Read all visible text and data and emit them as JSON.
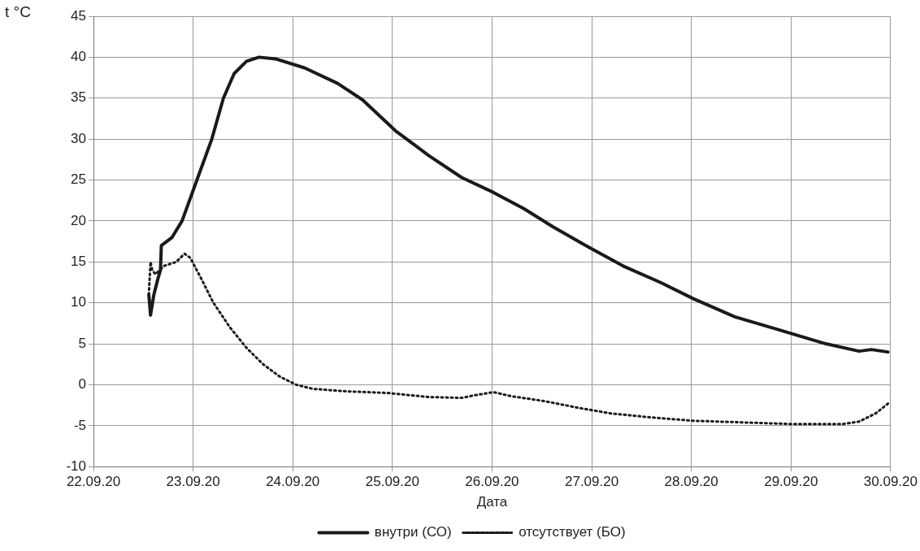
{
  "chart_data": {
    "type": "line",
    "xlabel": "Дата",
    "ylabel": "t °C",
    "xlim": [
      "--09-22",
      "--09-30"
    ],
    "xticks": [
      {
        "value": "--09-22",
        "label": "22.09.20"
      },
      {
        "value": "--09-23",
        "label": "23.09.20"
      },
      {
        "value": "--09-24",
        "label": "24.09.20"
      },
      {
        "value": "--09-25",
        "label": "25.09.20"
      },
      {
        "value": "--09-26",
        "label": "26.09.20"
      },
      {
        "value": "--09-27",
        "label": "27.09.20"
      },
      {
        "value": "--09-28",
        "label": "28.09.20"
      },
      {
        "value": "--09-29",
        "label": "29.09.20"
      },
      {
        "value": "--09-30",
        "label": "30.09.20"
      }
    ],
    "ylim": [
      -10,
      45
    ],
    "yticks": [
      -10,
      -5,
      0,
      5,
      10,
      15,
      20,
      25,
      30,
      35,
      40,
      45
    ],
    "grid": true,
    "legend": "bottom",
    "marker": "none",
    "series": [
      {
        "name": "внутри (СО)",
        "color": "#1a1a1a",
        "line_style": "solid",
        "x": [
          "--09-22T13:20",
          "--09-22T13:45",
          "--09-22T14:33",
          "--09-22T15:33",
          "--09-22T16:08",
          "--09-22T16:21",
          "--09-22T18:56",
          "--09-22T21:20",
          "--09-23T00:55",
          "--09-23T04:30",
          "--09-23T07:18",
          "--09-23T09:53",
          "--09-23T12:52",
          "--09-23T15:52",
          "--09-23T19:51",
          "--09-24T02:50",
          "--09-24T10:48",
          "--09-24T16:47",
          "--09-25T00:46",
          "--09-25T08:44",
          "--09-25T16:42",
          "--09-26T00:17",
          "--09-26T07:40",
          "--09-26T14:38",
          "--09-26T22:36",
          "--09-27T07:35",
          "--09-27T16:32",
          "--09-28T00:31",
          "--09-28T10:29",
          "--09-28T20:27",
          "--09-29T08:24",
          "--09-29T16:23",
          "--09-29T19:22",
          "--09-29T23:21"
        ],
        "values": [
          11,
          8.5,
          11,
          13,
          14,
          17,
          18,
          20,
          25,
          30,
          35,
          38,
          39.5,
          40,
          39.8,
          38.7,
          36.8,
          34.8,
          31,
          28,
          25.3,
          23.5,
          21.5,
          19.3,
          17,
          14.5,
          12.5,
          10.5,
          8.3,
          6.8,
          5,
          4.1,
          4.3,
          4
        ]
      },
      {
        "name": "отсутствует (БО)",
        "color": "#1a1a1a",
        "line_style": "dotted",
        "x": [
          "--09-22T13:20",
          "--09-22T13:45",
          "--09-22T14:09",
          "--09-22T14:57",
          "--09-22T16:57",
          "--09-22T19:56",
          "--09-22T21:56",
          "--09-22T23:19",
          "--09-23T01:55",
          "--09-23T04:54",
          "--09-23T08:53",
          "--09-23T12:52",
          "--09-23T16:52",
          "--09-23T20:51",
          "--09-24T00:50",
          "--09-24T04:49",
          "--09-24T12:47",
          "--09-24T22:46",
          "--09-25T08:44",
          "--09-25T16:42",
          "--09-25T19:42",
          "--09-26T00:17",
          "--09-26T04:39",
          "--09-26T12:38",
          "--09-26T20:37",
          "--09-27T04:35",
          "--09-27T14:33",
          "--09-28T00:31",
          "--09-28T12:28",
          "--09-29T00:26",
          "--09-29T12:24",
          "--09-29T16:23",
          "--09-29T20:23",
          "--09-29T23:21"
        ],
        "values": [
          11,
          15,
          14,
          13.5,
          14.5,
          15,
          16,
          15.5,
          13,
          10,
          7,
          4.5,
          2.5,
          1,
          0,
          -0.5,
          -0.8,
          -1,
          -1.5,
          -1.6,
          -1.3,
          -0.9,
          -1.4,
          -2,
          -2.8,
          -3.5,
          -4,
          -4.4,
          -4.6,
          -4.8,
          -4.8,
          -4.5,
          -3.5,
          -2.3
        ]
      }
    ]
  }
}
